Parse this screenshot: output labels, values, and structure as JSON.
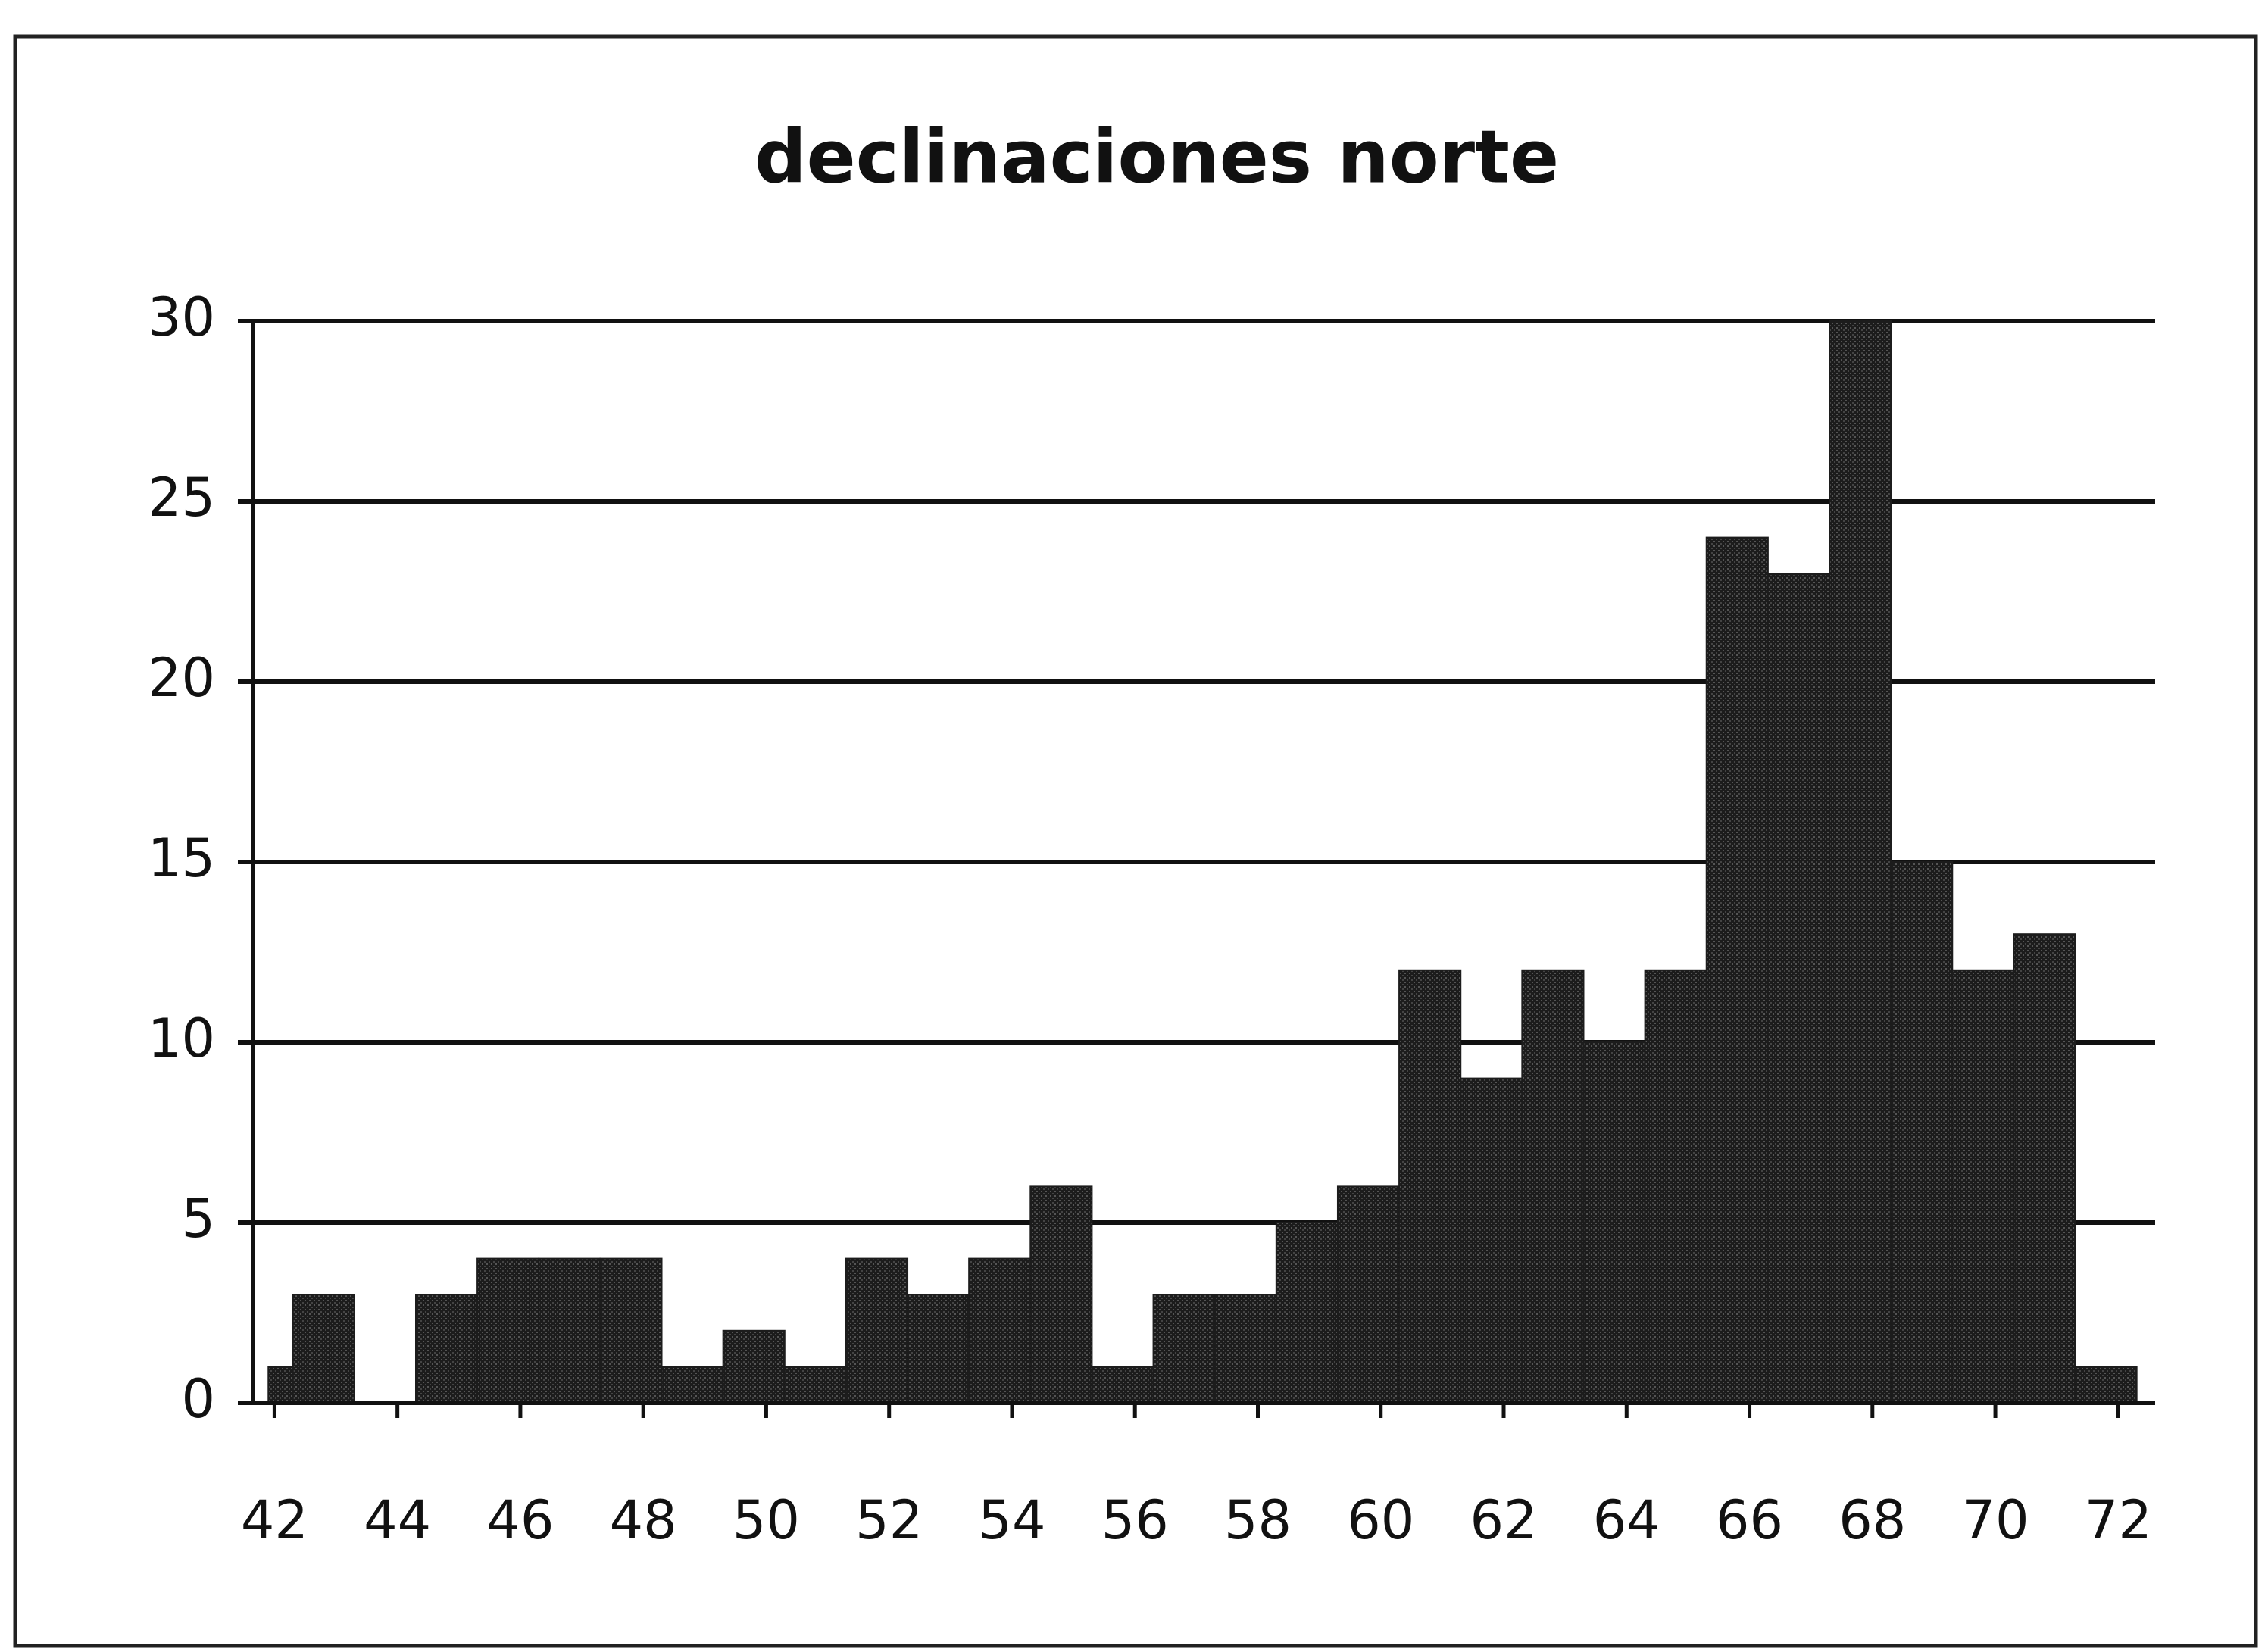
{
  "chart_data": {
    "type": "histogram",
    "title": "declinaciones norte",
    "bins": [
      41.9,
      42.3,
      43.3,
      44.3,
      45.3,
      46.3,
      47.3,
      48.3,
      49.3,
      50.3,
      51.3,
      52.3,
      53.3,
      54.3,
      55.3,
      56.3,
      57.3,
      58.3,
      59.3,
      60.3,
      61.3,
      62.3,
      63.3,
      64.3,
      65.3,
      66.3,
      67.3,
      68.3,
      69.3,
      70.3,
      71.3,
      72.3
    ],
    "values": [
      1,
      3,
      0,
      3,
      4,
      4,
      4,
      1,
      2,
      1,
      4,
      3,
      4,
      6,
      1,
      3,
      3,
      5,
      6,
      12,
      9,
      12,
      10,
      12,
      24,
      23,
      30,
      15,
      12,
      13,
      1
    ],
    "color": "#1c1c1c",
    "xlim": [
      41.65,
      72.6
    ],
    "xticks": [
      42,
      44,
      46,
      48,
      50,
      52,
      54,
      56,
      58,
      60,
      62,
      64,
      66,
      68,
      70,
      72
    ],
    "ylim": [
      0,
      30
    ],
    "yticks": [
      0,
      5,
      10,
      15,
      20,
      25,
      30
    ],
    "grid": true
  }
}
